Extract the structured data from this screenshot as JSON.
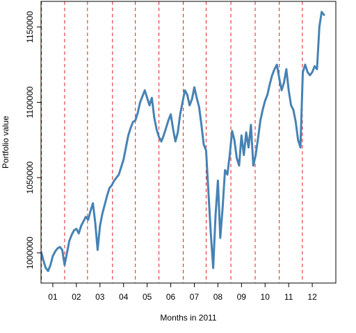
{
  "chart_data": {
    "type": "line",
    "title": "",
    "xlabel": "Months in 2011",
    "ylabel": "Portfolio value",
    "ylim": [
      980000,
      1167000
    ],
    "xlim": [
      0.5,
      13.0
    ],
    "y_ticks": [
      {
        "value": 1000000,
        "label": "1000000"
      },
      {
        "value": 1050000,
        "label": "1050000"
      },
      {
        "value": 1100000,
        "label": "1100000"
      },
      {
        "value": 1150000,
        "label": "1150000"
      }
    ],
    "x_ticks": [
      {
        "value": 1,
        "label": "01"
      },
      {
        "value": 2,
        "label": "02"
      },
      {
        "value": 3,
        "label": "03"
      },
      {
        "value": 4,
        "label": "04"
      },
      {
        "value": 5,
        "label": "05"
      },
      {
        "value": 6,
        "label": "06"
      },
      {
        "value": 7,
        "label": "07"
      },
      {
        "value": 8,
        "label": "08"
      },
      {
        "value": 9,
        "label": "09"
      },
      {
        "value": 10,
        "label": "10"
      },
      {
        "value": 11,
        "label": "11"
      },
      {
        "value": 12,
        "label": "12"
      }
    ],
    "month_boundaries": [
      0.52,
      1.5,
      2.47,
      3.53,
      4.5,
      5.5,
      6.53,
      7.5,
      8.55,
      9.58,
      10.6,
      11.58
    ],
    "line_color": "#4682b4",
    "boundary_color": "#dd2222",
    "series": [
      {
        "x": [
          0.52,
          0.6,
          0.7,
          0.8,
          0.9,
          1.0,
          1.1,
          1.2,
          1.3,
          1.4,
          1.5,
          1.6,
          1.7,
          1.8,
          1.9,
          2.0,
          2.1,
          2.2,
          2.3,
          2.4,
          2.5,
          2.6,
          2.7,
          2.8,
          2.9,
          3.0,
          3.1,
          3.2,
          3.3,
          3.4,
          3.5,
          3.6,
          3.7,
          3.8,
          3.9,
          4.0,
          4.1,
          4.2,
          4.3,
          4.4,
          4.5,
          4.6,
          4.7,
          4.8,
          4.9,
          5.0,
          5.1,
          5.2,
          5.3,
          5.4,
          5.5,
          5.6,
          5.7,
          5.8,
          5.9,
          6.0,
          6.1,
          6.2,
          6.3,
          6.4,
          6.5,
          6.6,
          6.7,
          6.8,
          6.9,
          7.0,
          7.1,
          7.2,
          7.3,
          7.4,
          7.5,
          7.6,
          7.7,
          7.8,
          7.9,
          8.0,
          8.1,
          8.2,
          8.3,
          8.4,
          8.5,
          8.6,
          8.7,
          8.8,
          8.9,
          9.0,
          9.1,
          9.2,
          9.3,
          9.4,
          9.5,
          9.6,
          9.7,
          9.8,
          9.9,
          10.0,
          10.1,
          10.2,
          10.3,
          10.4,
          10.5,
          10.6,
          10.7,
          10.8,
          10.9,
          11.0,
          11.1,
          11.2,
          11.3,
          11.4,
          11.5,
          11.6,
          11.7,
          11.8,
          11.9,
          12.0,
          12.1,
          12.2,
          12.3,
          12.4,
          12.5
        ],
        "y": [
          1000000,
          995000,
          990000,
          988000,
          992000,
          998000,
          1001000,
          1003000,
          1004000,
          1002000,
          992000,
          1000000,
          1008000,
          1012000,
          1015000,
          1016000,
          1013000,
          1018000,
          1021000,
          1024000,
          1022000,
          1028000,
          1033000,
          1020000,
          1002000,
          1018000,
          1026000,
          1032000,
          1038000,
          1043000,
          1045000,
          1048000,
          1050000,
          1052000,
          1057000,
          1062000,
          1070000,
          1078000,
          1083000,
          1087000,
          1088000,
          1093000,
          1100000,
          1104000,
          1108000,
          1103000,
          1098000,
          1103000,
          1090000,
          1082000,
          1077000,
          1074000,
          1078000,
          1083000,
          1088000,
          1092000,
          1082000,
          1074000,
          1080000,
          1092000,
          1100000,
          1108000,
          1105000,
          1098000,
          1102000,
          1110000,
          1103000,
          1097000,
          1085000,
          1072000,
          1068000,
          1040000,
          1013000,
          990000,
          1025000,
          1048000,
          1010000,
          1030000,
          1055000,
          1052000,
          1065000,
          1081000,
          1075000,
          1063000,
          1058000,
          1078000,
          1065000,
          1080000,
          1070000,
          1085000,
          1058000,
          1065000,
          1076000,
          1088000,
          1095000,
          1101000,
          1105000,
          1112000,
          1118000,
          1122000,
          1125000,
          1116000,
          1108000,
          1113000,
          1122000,
          1108000,
          1098000,
          1095000,
          1087000,
          1075000,
          1070000,
          1120000,
          1125000,
          1120000,
          1118000,
          1120000,
          1124000,
          1122000,
          1150000,
          1160000,
          1158000
        ]
      }
    ]
  }
}
